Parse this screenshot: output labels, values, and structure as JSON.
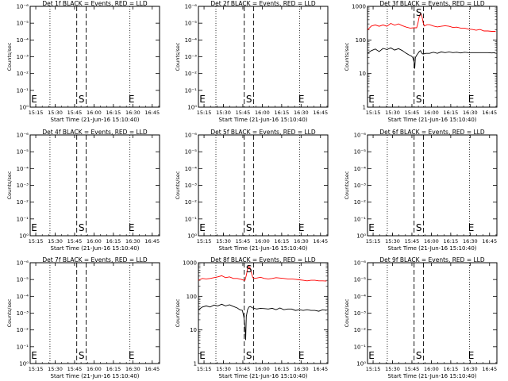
{
  "figure": {
    "x_tick_labels": [
      "15:15",
      "15:30",
      "15:45",
      "16:00",
      "16:15",
      "16:30",
      "16:45"
    ],
    "xlabel": "Start Time (21-Jun-16 15:10:40)",
    "ylabel": "Counts/sec",
    "markers": {
      "start": "S",
      "end": "E"
    },
    "colors": {
      "events": "#000000",
      "lld": "#ff0000"
    }
  },
  "chart_data": [
    {
      "type": "line",
      "title": "Det 1f BLACK = Events, RED = LLD",
      "xlabel": "Start Time (21-Jun-16 15:10:40)",
      "ylabel": "Counts/sec",
      "x_range_min": [
        0,
        100
      ],
      "x_ticks_min": [
        4.33,
        19.33,
        34.33,
        49.33,
        64.33,
        79.33,
        94.33
      ],
      "dotted_lines_min": [
        15.3,
        77.1
      ],
      "dashed_lines_min": [
        36.0,
        43.3
      ],
      "yscale": "log",
      "y_ticks": [
        "10⁰",
        "10⁻¹",
        "10⁻²",
        "10⁻³",
        "10⁻⁴",
        "10⁻⁵",
        "10⁻⁶"
      ],
      "series": []
    },
    {
      "type": "line",
      "title": "Det 2f BLACK = Events, RED = LLD",
      "xlabel": "Start Time (21-Jun-16 15:10:40)",
      "ylabel": "Counts/sec",
      "x_range_min": [
        0,
        100
      ],
      "x_ticks_min": [
        4.33,
        19.33,
        34.33,
        49.33,
        64.33,
        79.33,
        94.33
      ],
      "dotted_lines_min": [
        13.5,
        78.3
      ],
      "dashed_lines_min": [
        35.4,
        42.7
      ],
      "yscale": "log",
      "y_ticks": [
        "10⁰",
        "10⁻¹",
        "10⁻²",
        "10⁻³",
        "10⁻⁴",
        "10⁻⁵",
        "10⁻⁶"
      ],
      "series": []
    },
    {
      "type": "line",
      "title": "Det 3f BLACK = Events, RED = LLD",
      "xlabel": "Start Time (21-Jun-16 15:10:40)",
      "ylabel": "Counts/sec",
      "x_range_min": [
        0,
        100
      ],
      "x_ticks_min": [
        4.33,
        19.33,
        34.33,
        49.33,
        64.33,
        79.33,
        94.33
      ],
      "dotted_lines_min": [
        15.3,
        78.9
      ],
      "dashed_lines_min": [
        36.0,
        43.3
      ],
      "yscale": "log",
      "y_range": [
        1,
        1000
      ],
      "y_ticks": [
        "1",
        "10",
        "100",
        "1000"
      ],
      "series": [
        {
          "color": "#ff0000",
          "x": [
            0,
            3,
            6,
            9,
            12,
            15,
            18,
            21,
            24,
            27,
            30,
            33,
            36,
            38,
            39,
            40,
            41,
            42,
            43,
            44,
            46,
            48,
            51,
            54,
            57,
            60,
            63,
            66,
            69,
            72,
            75,
            78,
            81,
            84,
            87,
            90,
            93,
            96,
            99
          ],
          "y": [
            200,
            260,
            280,
            255,
            280,
            255,
            310,
            275,
            300,
            265,
            240,
            225,
            230,
            230,
            320,
            500,
            620,
            520,
            330,
            260,
            285,
            285,
            260,
            245,
            255,
            265,
            255,
            235,
            240,
            225,
            225,
            210,
            205,
            195,
            205,
            185,
            185,
            180,
            180
          ]
        },
        {
          "color": "#000000",
          "x": [
            0,
            3,
            6,
            9,
            12,
            15,
            18,
            21,
            24,
            27,
            30,
            32,
            34,
            35,
            36,
            36.5,
            37,
            38,
            39,
            40,
            41,
            42,
            43,
            45,
            48,
            51,
            54,
            57,
            60,
            63,
            66,
            69,
            72,
            75,
            78,
            81,
            84,
            87,
            90,
            93,
            96,
            99
          ],
          "y": [
            40,
            48,
            54,
            45,
            56,
            52,
            58,
            50,
            55,
            48,
            40,
            36,
            33,
            30,
            22,
            14,
            30,
            35,
            40,
            45,
            48,
            40,
            38,
            40,
            40,
            43,
            40,
            44,
            42,
            44,
            42,
            43,
            41,
            43,
            42,
            42,
            42,
            42,
            42,
            42,
            41,
            42
          ]
        }
      ]
    },
    {
      "type": "line",
      "title": "Det 4f BLACK = Events, RED = LLD",
      "xlabel": "Start Time (21-Jun-16 15:10:40)",
      "ylabel": "Counts/sec",
      "x_range_min": [
        0,
        100
      ],
      "x_ticks_min": [
        4.33,
        19.33,
        34.33,
        49.33,
        64.33,
        79.33,
        94.33
      ],
      "dotted_lines_min": [
        15.3,
        77.1
      ],
      "dashed_lines_min": [
        36.0,
        43.3
      ],
      "yscale": "log",
      "y_ticks": [
        "10⁰",
        "10⁻¹",
        "10⁻²",
        "10⁻³",
        "10⁻⁴",
        "10⁻⁵",
        "10⁻⁶"
      ],
      "series": []
    },
    {
      "type": "line",
      "title": "Det 5f BLACK = Events, RED = LLD",
      "xlabel": "Start Time (21-Jun-16 15:10:40)",
      "ylabel": "Counts/sec",
      "x_range_min": [
        0,
        100
      ],
      "x_ticks_min": [
        4.33,
        19.33,
        34.33,
        49.33,
        64.33,
        79.33,
        94.33
      ],
      "dotted_lines_min": [
        13.5,
        78.3
      ],
      "dashed_lines_min": [
        35.4,
        42.7
      ],
      "yscale": "log",
      "y_ticks": [
        "10⁰",
        "10⁻¹",
        "10⁻²",
        "10⁻³",
        "10⁻⁴",
        "10⁻⁵",
        "10⁻⁶"
      ],
      "series": []
    },
    {
      "type": "line",
      "title": "Det 6f BLACK = Events, RED = LLD",
      "xlabel": "Start Time (21-Jun-16 15:10:40)",
      "ylabel": "Counts/sec",
      "x_range_min": [
        0,
        100
      ],
      "x_ticks_min": [
        4.33,
        19.33,
        34.33,
        49.33,
        64.33,
        79.33,
        94.33
      ],
      "dotted_lines_min": [
        15.3,
        78.9
      ],
      "dashed_lines_min": [
        36.0,
        43.3
      ],
      "yscale": "log",
      "y_ticks": [
        "10⁰",
        "10⁻¹",
        "10⁻²",
        "10⁻³",
        "10⁻⁴",
        "10⁻⁵",
        "10⁻⁶"
      ],
      "series": []
    },
    {
      "type": "line",
      "title": "Det 7f BLACK = Events, RED = LLD",
      "xlabel": "Start Time (21-Jun-16 15:10:40)",
      "ylabel": "Counts/sec",
      "x_range_min": [
        0,
        100
      ],
      "x_ticks_min": [
        4.33,
        19.33,
        34.33,
        49.33,
        64.33,
        79.33,
        94.33
      ],
      "dotted_lines_min": [
        15.3,
        77.1
      ],
      "dashed_lines_min": [
        36.0,
        43.3
      ],
      "yscale": "log",
      "y_ticks": [
        "10⁰",
        "10⁻¹",
        "10⁻²",
        "10⁻³",
        "10⁻⁴",
        "10⁻⁵",
        "10⁻⁶"
      ],
      "series": []
    },
    {
      "type": "line",
      "title": "Det 8f BLACK = Events, RED = LLD",
      "xlabel": "Start Time (21-Jun-16 15:10:40)",
      "ylabel": "Counts/sec",
      "x_range_min": [
        0,
        100
      ],
      "x_ticks_min": [
        4.33,
        19.33,
        34.33,
        49.33,
        64.33,
        79.33,
        94.33
      ],
      "dotted_lines_min": [
        13.5,
        78.3
      ],
      "dashed_lines_min": [
        35.4,
        42.7
      ],
      "yscale": "log",
      "y_range": [
        1,
        1000
      ],
      "y_ticks": [
        "1",
        "10",
        "100",
        "1000"
      ],
      "series": [
        {
          "color": "#ff0000",
          "x": [
            0,
            3,
            6,
            9,
            12,
            15,
            18,
            21,
            24,
            27,
            30,
            33,
            35,
            36,
            37,
            38,
            39,
            40,
            41,
            42,
            43,
            45,
            48,
            51,
            54,
            57,
            60,
            63,
            66,
            69,
            72,
            75,
            78,
            81,
            84,
            87,
            90,
            93,
            96,
            99
          ],
          "y": [
            300,
            340,
            330,
            340,
            360,
            380,
            410,
            360,
            380,
            340,
            340,
            320,
            300,
            300,
            420,
            640,
            780,
            700,
            500,
            360,
            340,
            350,
            370,
            340,
            330,
            340,
            360,
            350,
            340,
            330,
            330,
            320,
            310,
            300,
            290,
            300,
            300,
            290,
            290,
            285
          ]
        },
        {
          "color": "#000000",
          "x": [
            0,
            3,
            6,
            9,
            12,
            15,
            18,
            21,
            24,
            27,
            30,
            32,
            34,
            35,
            36,
            36.5,
            37,
            38,
            39,
            40,
            42,
            45,
            48,
            51,
            54,
            57,
            60,
            63,
            66,
            69,
            72,
            75,
            78,
            81,
            84,
            87,
            90,
            93,
            96,
            99
          ],
          "y": [
            40,
            48,
            52,
            48,
            55,
            52,
            58,
            52,
            56,
            50,
            45,
            40,
            38,
            25,
            12,
            5,
            25,
            40,
            48,
            50,
            45,
            42,
            44,
            43,
            42,
            44,
            40,
            45,
            40,
            42,
            42,
            38,
            40,
            38,
            40,
            38,
            38,
            36,
            40,
            38
          ]
        }
      ]
    },
    {
      "type": "line",
      "title": "Det 9f BLACK = Events, RED = LLD",
      "xlabel": "Start Time (21-Jun-16 15:10:40)",
      "ylabel": "Counts/sec",
      "x_range_min": [
        0,
        100
      ],
      "x_ticks_min": [
        4.33,
        19.33,
        34.33,
        49.33,
        64.33,
        79.33,
        94.33
      ],
      "dotted_lines_min": [
        15.3,
        78.9
      ],
      "dashed_lines_min": [
        36.0,
        43.3
      ],
      "yscale": "log",
      "y_ticks": [
        "10⁰",
        "10⁻¹",
        "10⁻²",
        "10⁻³",
        "10⁻⁴",
        "10⁻⁵",
        "10⁻⁶"
      ],
      "series": []
    }
  ]
}
